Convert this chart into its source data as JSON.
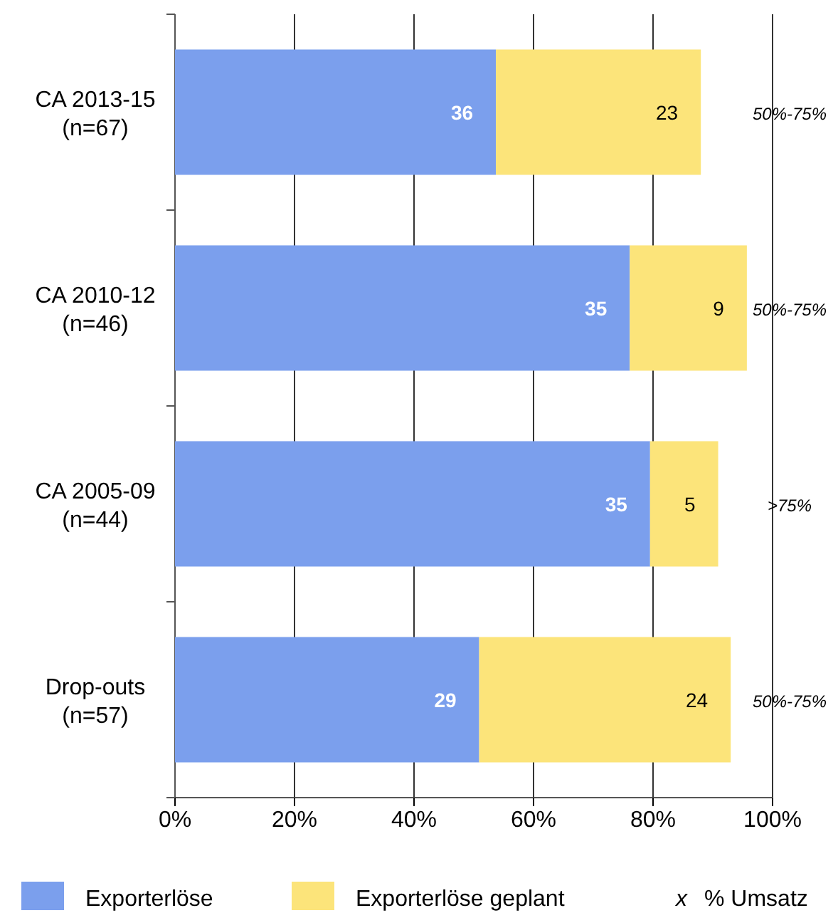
{
  "chart_data": {
    "type": "bar",
    "orientation": "horizontal",
    "stacked": true,
    "categories": [
      "CA 2013-15\n(n=67)",
      "CA 2010-12\n(n=46)",
      "CA 2005-09\n(n=44)",
      "Drop-outs\n(n=57)"
    ],
    "series": [
      {
        "name": "Exporterlöse",
        "color": "#7b9fed",
        "values": [
          53.7,
          76.1,
          79.5,
          50.9
        ]
      },
      {
        "name": "Exporterlöse geplant",
        "color": "#fce47a",
        "values": [
          34.3,
          19.6,
          11.4,
          42.1
        ]
      }
    ],
    "xlim": [
      0,
      100
    ],
    "xticks": [
      {
        "value": 0,
        "label": "0%"
      },
      {
        "value": 20,
        "label": "20%"
      },
      {
        "value": 40,
        "label": "40%"
      },
      {
        "value": 60,
        "label": "60%"
      },
      {
        "value": 80,
        "label": "80%"
      },
      {
        "value": 100,
        "label": "100%"
      }
    ],
    "grid": "x",
    "legend": "bottom",
    "annotations": [
      "50%-75%",
      "50%-75%",
      ">75%",
      "50%-75%",
      "x  % Umsatz",
      {
        "text": "36",
        "x": 53.7,
        "y": "CA 2013-15\n(n=67)"
      },
      {
        "text": "23",
        "x": 88,
        "y": "CA 2013-15\n(n=67)"
      },
      {
        "text": "35",
        "x": 76.1,
        "y": "CA 2010-12\n(n=46)"
      },
      {
        "text": "9",
        "x": 95.7,
        "y": "CA 2010-12\n(n=46)"
      },
      {
        "text": "35",
        "x": 79.5,
        "y": "CA 2005-09\n(n=44)"
      },
      {
        "text": "5",
        "x": 90.9,
        "y": "CA 2005-09\n(n=44)"
      },
      {
        "text": "29",
        "x": 50.9,
        "y": "Drop-outs\n(n=57)"
      },
      {
        "text": "24",
        "x": 93,
        "y": "Drop-outs\n(n=57)"
      }
    ]
  }
}
